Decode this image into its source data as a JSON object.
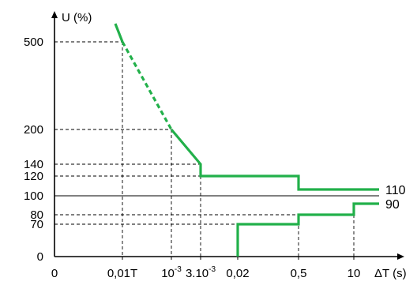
{
  "chart_data": {
    "type": "line",
    "ylabel": "U (%)",
    "xlabel": "ΔT (s)",
    "x_ticks": [
      {
        "key": "0",
        "label": "0"
      },
      {
        "key": "0.01T",
        "label": "0,01T"
      },
      {
        "key": "1e-3",
        "label": "10",
        "sup": "-3"
      },
      {
        "key": "3e-3",
        "label": "3.10",
        "sup": "-3"
      },
      {
        "key": "0.02",
        "label": "0,02"
      },
      {
        "key": "0.5",
        "label": "0,5"
      },
      {
        "key": "10",
        "label": "10"
      }
    ],
    "y_ticks": [
      0,
      70,
      80,
      100,
      120,
      140,
      200,
      500
    ],
    "reference_lines": [
      100
    ],
    "series": [
      {
        "points": [
          {
            "x": "start",
            "y": 560
          },
          {
            "x": "0.01T",
            "y": 500
          },
          {
            "x": "1e-3",
            "y": 200
          },
          {
            "x": "3e-3",
            "y": 140
          },
          {
            "x": "3e-3",
            "y": 120
          },
          {
            "x": "0.5",
            "y": 120
          },
          {
            "x": "0.5",
            "y": 110
          },
          {
            "x": "end",
            "y": 110
          }
        ],
        "dashed_between": [
          "0.01T",
          "1e-3"
        ],
        "end_label": "110"
      },
      {
        "points": [
          {
            "x": "0.02",
            "y": 0
          },
          {
            "x": "0.02",
            "y": 70
          },
          {
            "x": "0.5",
            "y": 70
          },
          {
            "x": "0.5",
            "y": 80
          },
          {
            "x": "10",
            "y": 80
          },
          {
            "x": "10",
            "y": 90
          },
          {
            "x": "end",
            "y": 90
          }
        ],
        "end_label": "90"
      }
    ],
    "colors": {
      "curve": "#22b04a",
      "axis": "#000000"
    }
  }
}
